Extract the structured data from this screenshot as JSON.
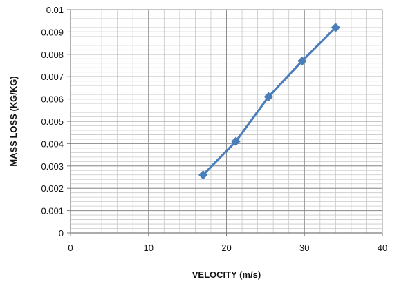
{
  "chart_data": {
    "type": "line",
    "title": "",
    "xlabel": "VELOCITY (m/s)",
    "ylabel": "MASS LOSS (KG/KG)",
    "xlim": [
      0,
      40
    ],
    "ylim": [
      0,
      0.01
    ],
    "x_ticks": [
      0,
      10,
      20,
      30,
      40
    ],
    "x_tick_labels": [
      "0",
      "10",
      "20",
      "30",
      "40"
    ],
    "y_ticks": [
      0,
      0.001,
      0.002,
      0.003,
      0.004,
      0.005,
      0.006,
      0.007,
      0.008,
      0.009,
      0.01
    ],
    "y_tick_labels": [
      "0",
      "0.001",
      "0.002",
      "0.003",
      "0.004",
      "0.005",
      "0.006",
      "0.007",
      "0.008",
      "0.009",
      "0.01"
    ],
    "grid": true,
    "legend": "none",
    "series": [
      {
        "x": [
          17,
          21.2,
          25.4,
          29.7,
          34
        ],
        "y": [
          0.0026,
          0.0041,
          0.0061,
          0.0077,
          0.0092
        ],
        "color": "#4A7EBB",
        "marker": "diamond"
      }
    ]
  }
}
